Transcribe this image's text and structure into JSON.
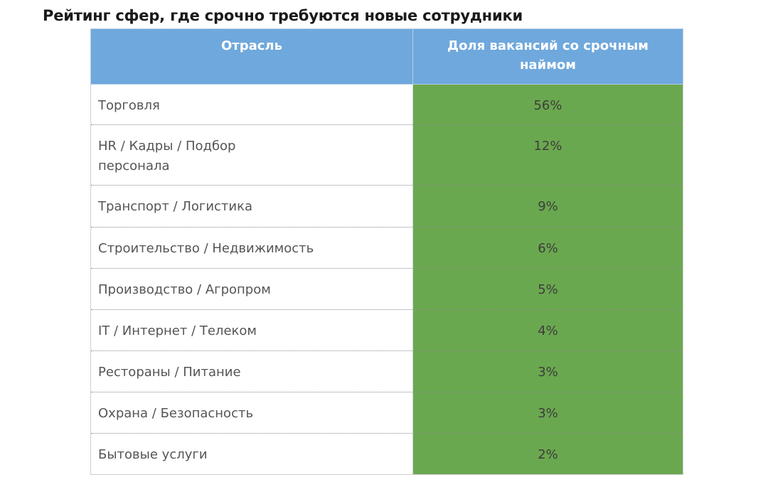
{
  "title": "Рейтинг сфер, где срочно требуются новые сотрудники",
  "colors": {
    "header_bg": "#6fa8dc",
    "value_bg": "#6aa84f"
  },
  "table": {
    "headers": [
      "Отрасль",
      "Доля вакансий со срочным наймом"
    ],
    "rows": [
      {
        "industry": "Торговля",
        "share": "56%"
      },
      {
        "industry": "HR / Кадры / Подбор персонала",
        "share": "12%"
      },
      {
        "industry": "Транспорт / Логистика",
        "share": "9%"
      },
      {
        "industry": "Строительство / Недвижимость",
        "share": "6%"
      },
      {
        "industry": "Производство / Агропром",
        "share": "5%"
      },
      {
        "industry": "IT / Интернет / Телеком",
        "share": "4%"
      },
      {
        "industry": "Рестораны / Питание",
        "share": "3%"
      },
      {
        "industry": "Охрана / Безопасность",
        "share": "3%"
      },
      {
        "industry": "Бытовые услуги",
        "share": "2%"
      }
    ]
  }
}
